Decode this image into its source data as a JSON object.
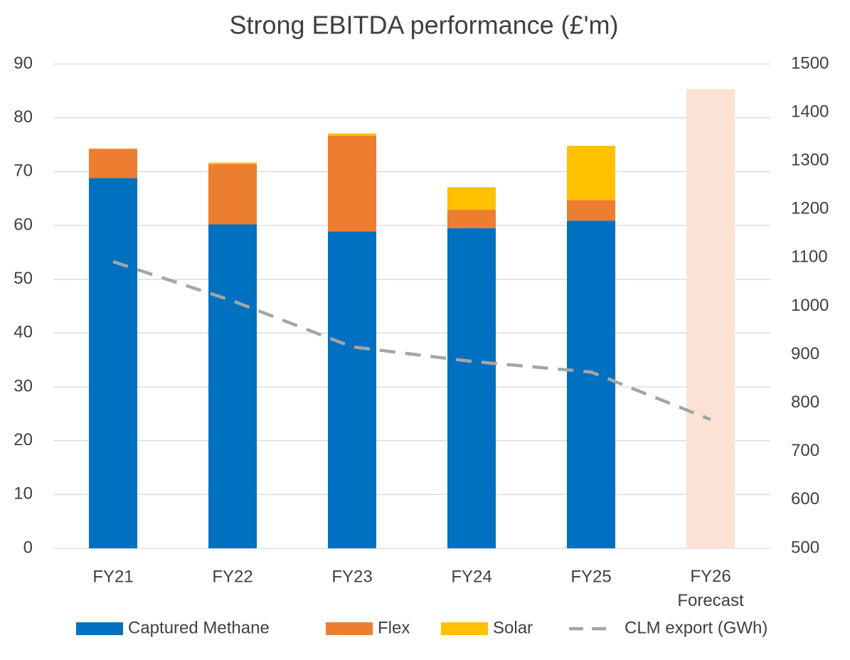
{
  "chart_data": {
    "type": "bar",
    "title": "Strong EBITDA performance (£'m)",
    "categories": [
      "FY21",
      "FY22",
      "FY23",
      "FY24",
      "FY25",
      "FY26\nForecast"
    ],
    "stacked": true,
    "series": [
      {
        "name": "Captured Methane",
        "color": "#0070c0",
        "values": [
          68.8,
          60.2,
          58.9,
          59.5,
          60.9,
          null
        ]
      },
      {
        "name": "Flex",
        "color": "#ed7d31",
        "values": [
          5.4,
          11.2,
          17.8,
          3.4,
          3.8,
          null
        ]
      },
      {
        "name": "Solar",
        "color": "#ffc000",
        "values": [
          0.1,
          0.3,
          0.4,
          4.2,
          10.1,
          null
        ]
      },
      {
        "color": "#fbe2d5",
        "values": [
          null,
          null,
          null,
          null,
          null,
          85.3
        ]
      },
      {
        "name": "CLM export (GWh)",
        "type": "line",
        "axis": "y2",
        "color": "#a5a5a5",
        "dashed": true,
        "values": [
          1092,
          1011,
          916,
          886,
          864,
          766
        ]
      }
    ],
    "ylim": [
      0,
      90
    ],
    "yticks": [
      0,
      10,
      20,
      30,
      40,
      50,
      60,
      70,
      80,
      90
    ],
    "y2lim": [
      500,
      1500
    ],
    "y2ticks": [
      500,
      600,
      700,
      800,
      900,
      1000,
      1100,
      1200,
      1300,
      1400,
      1500
    ],
    "grid": true,
    "legend": "bottom"
  }
}
